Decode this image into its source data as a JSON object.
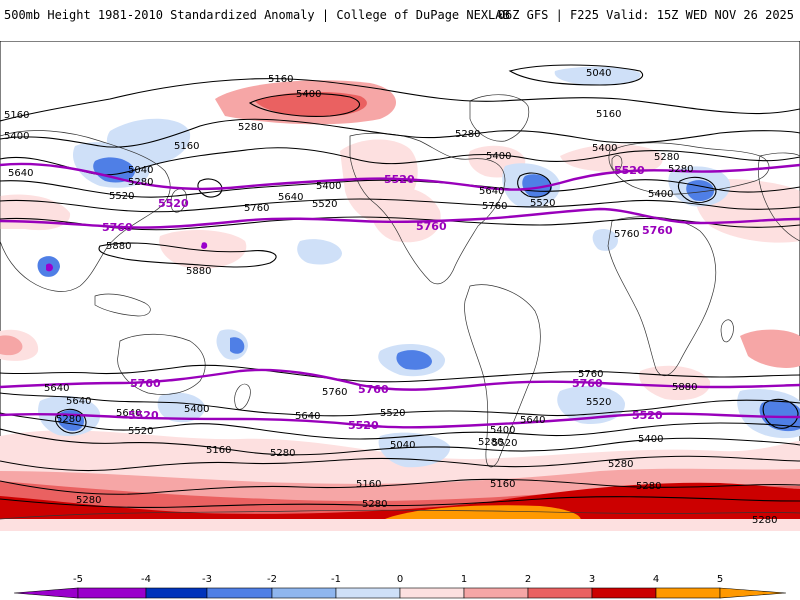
{
  "header": {
    "left": "500mb Height 1981-2010 Standardized Anomaly | College of DuPage NEXLAB",
    "right": "06Z GFS | F225 Valid: 15Z WED NOV 26 2025"
  },
  "colors": {
    "purple_contour": "#9900bb",
    "black_contour": "#000000",
    "coast": "#333333",
    "anom_neg1": "#cfe0f8",
    "anom_neg2": "#8fb6ef",
    "anom_neg3": "#4f7fe6",
    "anom_neg4": "#0033bb",
    "anom_neg5": "#9a00cc",
    "anom_pos1": "#fde0e0",
    "anom_pos2": "#f6a6a6",
    "anom_pos3": "#ea6161",
    "anom_pos4": "#cc0000",
    "anom_pos5": "#ff9900"
  },
  "contour_labels": [
    {
      "id": "5160-n1",
      "text": "5160"
    },
    {
      "id": "5040-n1",
      "text": "5040"
    },
    {
      "id": "5400-n1",
      "text": "5400"
    },
    {
      "id": "5160-n2",
      "text": "5160"
    },
    {
      "id": "5400-n2",
      "text": "5400"
    },
    {
      "id": "5280-n1",
      "text": "5280"
    },
    {
      "id": "5160-n3",
      "text": "5160"
    },
    {
      "id": "5280-n2",
      "text": "5280"
    },
    {
      "id": "5160-n4",
      "text": "5160"
    },
    {
      "id": "5400-n3",
      "text": "5400"
    },
    {
      "id": "5280-n3",
      "text": "5280"
    },
    {
      "id": "5040-n2",
      "text": "5040"
    },
    {
      "id": "5280-n4",
      "text": "5280"
    },
    {
      "id": "5520-n1",
      "text": "5520"
    },
    {
      "id": "5640-n1",
      "text": "5640"
    },
    {
      "id": "5400-n4",
      "text": "5400"
    },
    {
      "id": "5520-n2",
      "text": "5520"
    },
    {
      "id": "5640-n2",
      "text": "5640"
    },
    {
      "id": "5760-n1",
      "text": "5760"
    },
    {
      "id": "5400-n5",
      "text": "5400"
    },
    {
      "id": "5640-n3",
      "text": "5640"
    },
    {
      "id": "5520-n3",
      "text": "5520"
    },
    {
      "id": "5760-n2",
      "text": "5760"
    },
    {
      "id": "5400-n6",
      "text": "5400"
    },
    {
      "id": "5280-n5",
      "text": "5280"
    },
    {
      "id": "5760-n3",
      "text": "5760"
    },
    {
      "id": "5880-n1",
      "text": "5880"
    },
    {
      "id": "5880-n2",
      "text": "5880"
    },
    {
      "id": "5760-s1",
      "text": "5760"
    },
    {
      "id": "5880-s1",
      "text": "5880"
    },
    {
      "id": "5760-s2",
      "text": "5760"
    },
    {
      "id": "5640-s1",
      "text": "5640"
    },
    {
      "id": "5400-s1",
      "text": "5400"
    },
    {
      "id": "5640-s2",
      "text": "5640"
    },
    {
      "id": "5520-s1",
      "text": "5520"
    },
    {
      "id": "5040-s1",
      "text": "5040"
    },
    {
      "id": "5280-s1",
      "text": "5280"
    },
    {
      "id": "5160-s1",
      "text": "5160"
    },
    {
      "id": "5640-s3",
      "text": "5640"
    },
    {
      "id": "5520-s2",
      "text": "5520"
    },
    {
      "id": "5400-s2",
      "text": "5400"
    },
    {
      "id": "5280-s2",
      "text": "5280"
    },
    {
      "id": "5280-s3",
      "text": "5280"
    },
    {
      "id": "5280-s4",
      "text": "5280"
    },
    {
      "id": "5160-s2",
      "text": "5160"
    },
    {
      "id": "5280-s5",
      "text": "5280"
    },
    {
      "id": "5640-s4",
      "text": "5640"
    },
    {
      "id": "5520-s3",
      "text": "5520"
    },
    {
      "id": "5280-s6",
      "text": "5280"
    },
    {
      "id": "5400-s3",
      "text": "5400"
    },
    {
      "id": "5520-s4",
      "text": "5520"
    },
    {
      "id": "5640-s5",
      "text": "5640"
    },
    {
      "id": "5280-s7",
      "text": "5280"
    },
    {
      "id": "5160-s3",
      "text": "5160"
    },
    {
      "id": "5280-s8",
      "text": "5280"
    }
  ],
  "purple_labels": [
    {
      "id": "p5520-n1",
      "text": "5520"
    },
    {
      "id": "p5520-n2",
      "text": "5520"
    },
    {
      "id": "p5520-n3",
      "text": "5520"
    },
    {
      "id": "p5760-n1",
      "text": "5760"
    },
    {
      "id": "p5760-n2",
      "text": "5760"
    },
    {
      "id": "p5760-n3",
      "text": "5760"
    },
    {
      "id": "p5760-s1",
      "text": "5760"
    },
    {
      "id": "p5760-s2",
      "text": "5760"
    },
    {
      "id": "p5760-s3",
      "text": "5760"
    },
    {
      "id": "p5520-s1",
      "text": "5520"
    },
    {
      "id": "p5520-s2",
      "text": "5520"
    },
    {
      "id": "p5520-s3",
      "text": "5520"
    }
  ],
  "colorbar": {
    "ticks": [
      "-5",
      "-4",
      "-3",
      "-2",
      "-1",
      "0",
      "1",
      "2",
      "3",
      "4",
      "5"
    ]
  }
}
